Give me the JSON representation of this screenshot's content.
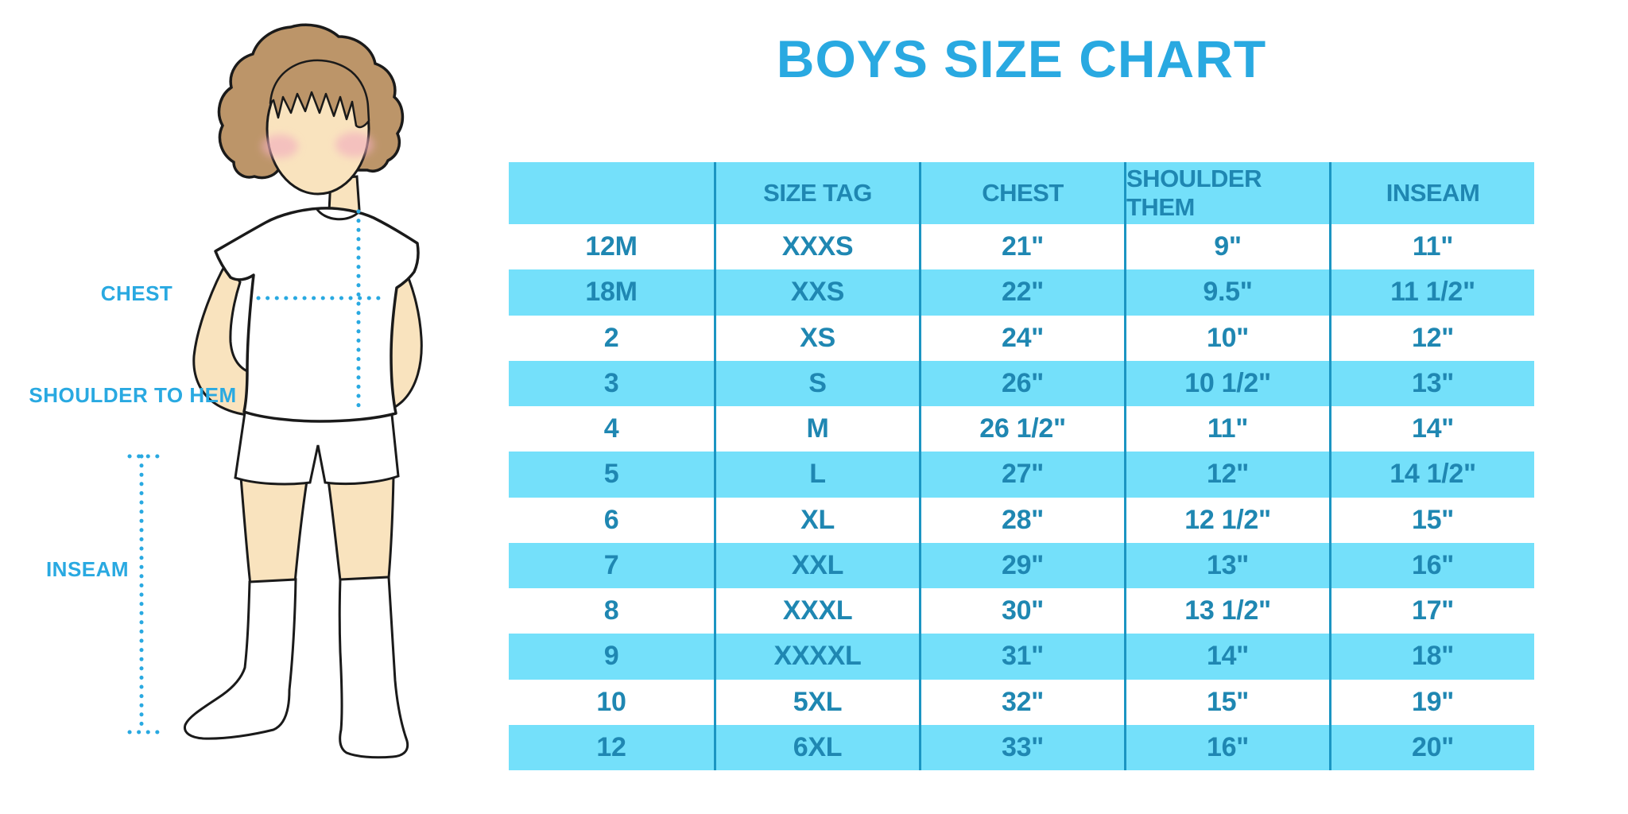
{
  "title": "BOYS SIZE CHART",
  "figure": {
    "labels": [
      "CHEST",
      "SHOULDER TO HEM",
      "INSEAM"
    ]
  },
  "chart_data": {
    "type": "table",
    "title": "BOYS SIZE CHART",
    "columns": [
      "",
      "SIZE TAG",
      "CHEST",
      "SHOULDER THEM",
      "INSEAM"
    ],
    "rows": [
      [
        "12M",
        "XXXS",
        "21\"",
        "9\"",
        "11\""
      ],
      [
        "18M",
        "XXS",
        "22\"",
        "9.5\"",
        "11 1/2\""
      ],
      [
        "2",
        "XS",
        "24\"",
        "10\"",
        "12\""
      ],
      [
        "3",
        "S",
        "26\"",
        "10 1/2\"",
        "13\""
      ],
      [
        "4",
        "M",
        "26 1/2\"",
        "11\"",
        "14\""
      ],
      [
        "5",
        "L",
        "27\"",
        "12\"",
        "14 1/2\""
      ],
      [
        "6",
        "XL",
        "28\"",
        "12 1/2\"",
        "15\""
      ],
      [
        "7",
        "XXL",
        "29\"",
        "13\"",
        "16\""
      ],
      [
        "8",
        "XXXL",
        "30\"",
        "13 1/2\"",
        "17\""
      ],
      [
        "9",
        "XXXXL",
        "31\"",
        "14\"",
        "18\""
      ],
      [
        "10",
        "5XL",
        "32\"",
        "15\"",
        "19\""
      ],
      [
        "12",
        "6XL",
        "33\"",
        "16\"",
        "20\""
      ]
    ],
    "row_stripe_pattern": "alternating white / light blue, header light blue",
    "legend_position": "none",
    "grid": "vertical dividers only"
  },
  "colors": {
    "accent_blue": "#29A9E1",
    "table_text": "#1F87B2",
    "divider": "#1B95C2",
    "stripe": "#74E0FA",
    "background": "#FFFFFF",
    "skin": "#F9E3BE",
    "hair": "#BC9569",
    "blush": "#F2AFBE",
    "outline": "#1A1A1A"
  }
}
